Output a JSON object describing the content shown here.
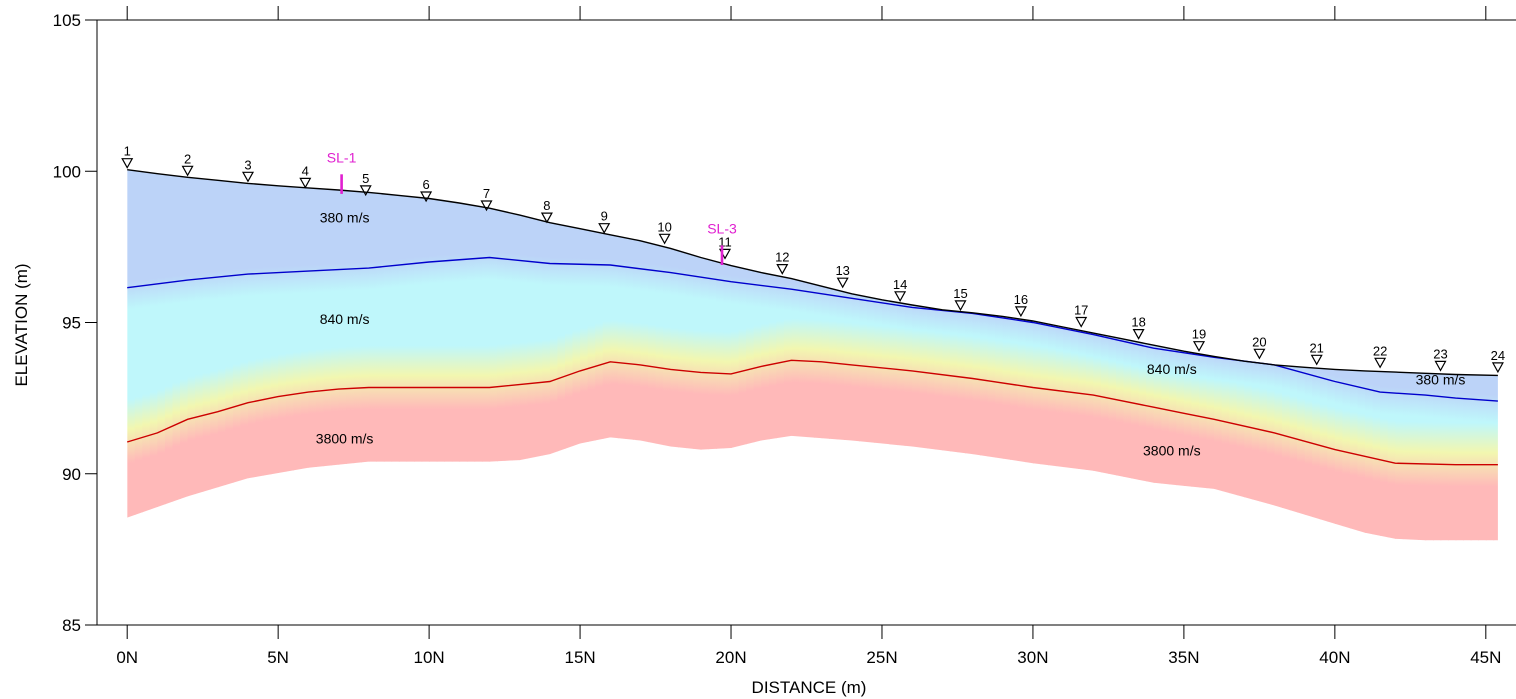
{
  "chart_data": {
    "type": "line",
    "xlabel": "DISTANCE (m)",
    "ylabel": "ELEVATION (m)",
    "xlim": [
      -1,
      46
    ],
    "ylim": [
      85,
      105
    ],
    "x_ticks": [
      {
        "value": 0,
        "label": "0N"
      },
      {
        "value": 5,
        "label": "5N"
      },
      {
        "value": 10,
        "label": "10N"
      },
      {
        "value": 15,
        "label": "15N"
      },
      {
        "value": 20,
        "label": "20N"
      },
      {
        "value": 25,
        "label": "25N"
      },
      {
        "value": 30,
        "label": "30N"
      },
      {
        "value": 35,
        "label": "35N"
      },
      {
        "value": 40,
        "label": "40N"
      },
      {
        "value": 45,
        "label": "45N"
      }
    ],
    "y_ticks": [
      {
        "value": 85,
        "label": "85"
      },
      {
        "value": 90,
        "label": "90"
      },
      {
        "value": 95,
        "label": "95"
      },
      {
        "value": 100,
        "label": "100"
      },
      {
        "value": 105,
        "label": "105"
      }
    ],
    "ground_surface": {
      "x": [
        0,
        1,
        2,
        3,
        4,
        5,
        6,
        7,
        8,
        9,
        10,
        11,
        12,
        13,
        14,
        15,
        16,
        17,
        18,
        19,
        20,
        21,
        22,
        23,
        24,
        25,
        26,
        27,
        28,
        29,
        30,
        31,
        32,
        33,
        34,
        35,
        36,
        37,
        38,
        39,
        40,
        41,
        42,
        43,
        44,
        45.4
      ],
      "y": [
        100.05,
        99.92,
        99.8,
        99.7,
        99.6,
        99.52,
        99.45,
        99.38,
        99.3,
        99.2,
        99.1,
        98.95,
        98.78,
        98.55,
        98.3,
        98.1,
        97.9,
        97.7,
        97.45,
        97.15,
        96.88,
        96.65,
        96.45,
        96.2,
        95.95,
        95.75,
        95.58,
        95.42,
        95.32,
        95.2,
        95.05,
        94.85,
        94.65,
        94.45,
        94.25,
        94.05,
        93.88,
        93.72,
        93.6,
        93.52,
        93.45,
        93.4,
        93.36,
        93.32,
        93.28,
        93.25
      ]
    },
    "base_of_model": {
      "x": [
        0,
        2,
        4,
        6,
        8,
        10,
        12,
        13,
        14,
        15,
        16,
        17,
        18,
        19,
        20,
        21,
        22,
        24,
        26,
        28,
        30,
        32,
        33,
        34,
        35,
        36,
        38,
        40,
        41,
        42,
        43,
        44,
        45.4
      ],
      "y": [
        88.55,
        89.25,
        89.85,
        90.2,
        90.4,
        90.4,
        90.4,
        90.45,
        90.65,
        91.0,
        91.2,
        91.1,
        90.9,
        90.8,
        90.85,
        91.1,
        91.25,
        91.1,
        90.9,
        90.65,
        90.35,
        90.1,
        89.9,
        89.7,
        89.6,
        89.5,
        88.95,
        88.35,
        88.05,
        87.85,
        87.8,
        87.8,
        87.8
      ]
    },
    "series": [
      {
        "color": "#0000cc",
        "x": [
          0,
          2,
          4,
          6,
          8,
          10,
          12,
          14,
          16,
          18,
          20,
          22,
          24,
          26,
          28,
          30,
          32,
          34,
          36,
          38,
          40,
          41.5,
          43,
          44,
          45.4
        ],
        "y": [
          96.15,
          96.4,
          96.6,
          96.7,
          96.8,
          97.0,
          97.15,
          96.95,
          96.9,
          96.65,
          96.35,
          96.1,
          95.8,
          95.5,
          95.3,
          95.0,
          94.6,
          94.15,
          93.85,
          93.6,
          93.05,
          92.7,
          92.6,
          92.5,
          92.4
        ]
      },
      {
        "color": "#cc0000",
        "x": [
          0,
          1,
          2,
          3,
          4,
          5,
          6,
          7,
          8,
          10,
          12,
          14,
          15,
          16,
          17,
          18,
          19,
          20,
          21,
          22,
          23,
          24,
          26,
          28,
          30,
          32,
          34,
          35,
          36,
          38,
          40,
          42,
          44,
          45.4
        ],
        "y": [
          91.05,
          91.35,
          91.8,
          92.05,
          92.35,
          92.55,
          92.7,
          92.8,
          92.85,
          92.85,
          92.85,
          93.05,
          93.4,
          93.7,
          93.6,
          93.45,
          93.35,
          93.3,
          93.55,
          93.75,
          93.7,
          93.6,
          93.4,
          93.15,
          92.85,
          92.6,
          92.2,
          92.0,
          91.8,
          91.35,
          90.8,
          90.35,
          90.3,
          90.3
        ]
      }
    ],
    "annotations": [
      {
        "text": "380 m/s",
        "x": 7.2,
        "y": 98.3
      },
      {
        "text": "840 m/s",
        "x": 7.2,
        "y": 94.95
      },
      {
        "text": "3800 m/s",
        "x": 7.2,
        "y": 91.0
      },
      {
        "text": "840 m/s",
        "x": 34.6,
        "y": 93.3
      },
      {
        "text": "380 m/s",
        "x": 43.5,
        "y": 92.95
      },
      {
        "text": "3800 m/s",
        "x": 34.6,
        "y": 90.6
      }
    ],
    "geophones": [
      {
        "label": "1",
        "x": 0.0,
        "y": 100.25
      },
      {
        "label": "2",
        "x": 2.0,
        "y": 100.0
      },
      {
        "label": "3",
        "x": 4.0,
        "y": 99.8
      },
      {
        "label": "4",
        "x": 5.9,
        "y": 99.6
      },
      {
        "label": "5",
        "x": 7.9,
        "y": 99.35
      },
      {
        "label": "6",
        "x": 9.9,
        "y": 99.15
      },
      {
        "label": "7",
        "x": 11.9,
        "y": 98.85
      },
      {
        "label": "8",
        "x": 13.9,
        "y": 98.45
      },
      {
        "label": "9",
        "x": 15.8,
        "y": 98.1
      },
      {
        "label": "10",
        "x": 17.8,
        "y": 97.75
      },
      {
        "label": "11",
        "x": 19.8,
        "y": 97.25
      },
      {
        "label": "12",
        "x": 21.7,
        "y": 96.75
      },
      {
        "label": "13",
        "x": 23.7,
        "y": 96.3
      },
      {
        "label": "14",
        "x": 25.6,
        "y": 95.85
      },
      {
        "label": "15",
        "x": 27.6,
        "y": 95.55
      },
      {
        "label": "16",
        "x": 29.6,
        "y": 95.35
      },
      {
        "label": "17",
        "x": 31.6,
        "y": 95.0
      },
      {
        "label": "18",
        "x": 33.5,
        "y": 94.6
      },
      {
        "label": "19",
        "x": 35.5,
        "y": 94.2
      },
      {
        "label": "20",
        "x": 37.5,
        "y": 93.95
      },
      {
        "label": "21",
        "x": 39.4,
        "y": 93.75
      },
      {
        "label": "22",
        "x": 41.5,
        "y": 93.65
      },
      {
        "label": "23",
        "x": 43.5,
        "y": 93.55
      },
      {
        "label": "24",
        "x": 45.4,
        "y": 93.5
      }
    ],
    "boreholes": [
      {
        "label": "SL-1",
        "x": 7.1,
        "y_top": 99.9,
        "y_bottom": 99.25
      },
      {
        "label": "SL-3",
        "x": 19.7,
        "y_top": 97.55,
        "y_bottom": 96.9
      }
    ],
    "colors": {
      "top_layer": "#bcd3f8",
      "middle_layer": "#bff7fb",
      "transition": "#f2f7b0",
      "bottom_layer": "#ffb9b9",
      "borehole": "#e020d0",
      "axis": "#000000"
    }
  }
}
